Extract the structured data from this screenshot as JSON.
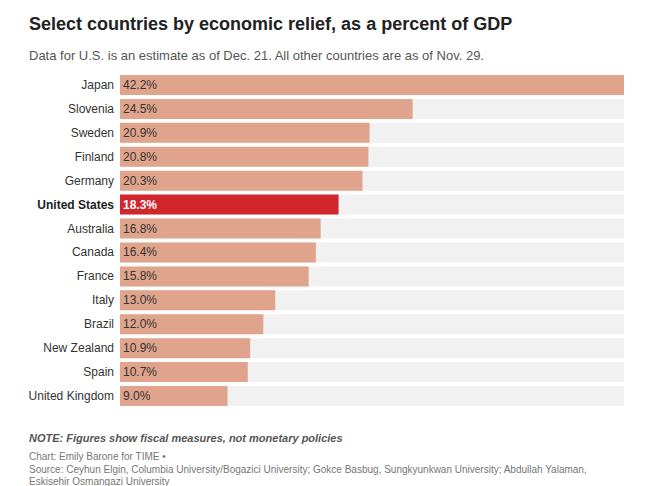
{
  "chart_data": {
    "type": "bar",
    "title": "Select countries by economic relief, as a percent of GDP",
    "subtitle": "Data for U.S. is an estimate as of Dec. 21. All other countries are as of Nov. 29.",
    "note": "NOTE: Figures show fiscal measures, not monetary policies",
    "credit": "Chart: Emily Barone for TIME •",
    "source": "Source: Ceyhun Elgin, Columbia University/Bogazici University; Gokce Basbug, Sungkyunkwan University; Abdullah Yalaman, Eskisehir Osmangazi University",
    "orientation": "horizontal",
    "categories": [
      "Japan",
      "Slovenia",
      "Sweden",
      "Finland",
      "Germany",
      "United States",
      "Australia",
      "Canada",
      "France",
      "Italy",
      "Brazil",
      "New Zealand",
      "Spain",
      "United Kingdom"
    ],
    "values": [
      42.2,
      24.5,
      20.9,
      20.8,
      20.3,
      18.3,
      16.8,
      16.4,
      15.8,
      13.0,
      12.0,
      10.9,
      10.7,
      9.0
    ],
    "value_labels": [
      "42.2%",
      "24.5%",
      "20.9%",
      "20.8%",
      "20.3%",
      "18.3%",
      "16.8%",
      "16.4%",
      "15.8%",
      "13.0%",
      "12.0%",
      "10.9%",
      "10.7%",
      "9.0%"
    ],
    "color": "#e0a48c",
    "colors": [
      "#e0a48c",
      "#e0a48c",
      "#e0a48c",
      "#e0a48c",
      "#e0a48c",
      "#d0262c",
      "#e0a48c",
      "#e0a48c",
      "#e0a48c",
      "#e0a48c",
      "#e0a48c",
      "#e0a48c",
      "#e0a48c",
      "#e0a48c"
    ],
    "xlim": [
      0,
      42.2
    ],
    "grid": false,
    "data_labels": true,
    "tick_labels": "y"
  }
}
